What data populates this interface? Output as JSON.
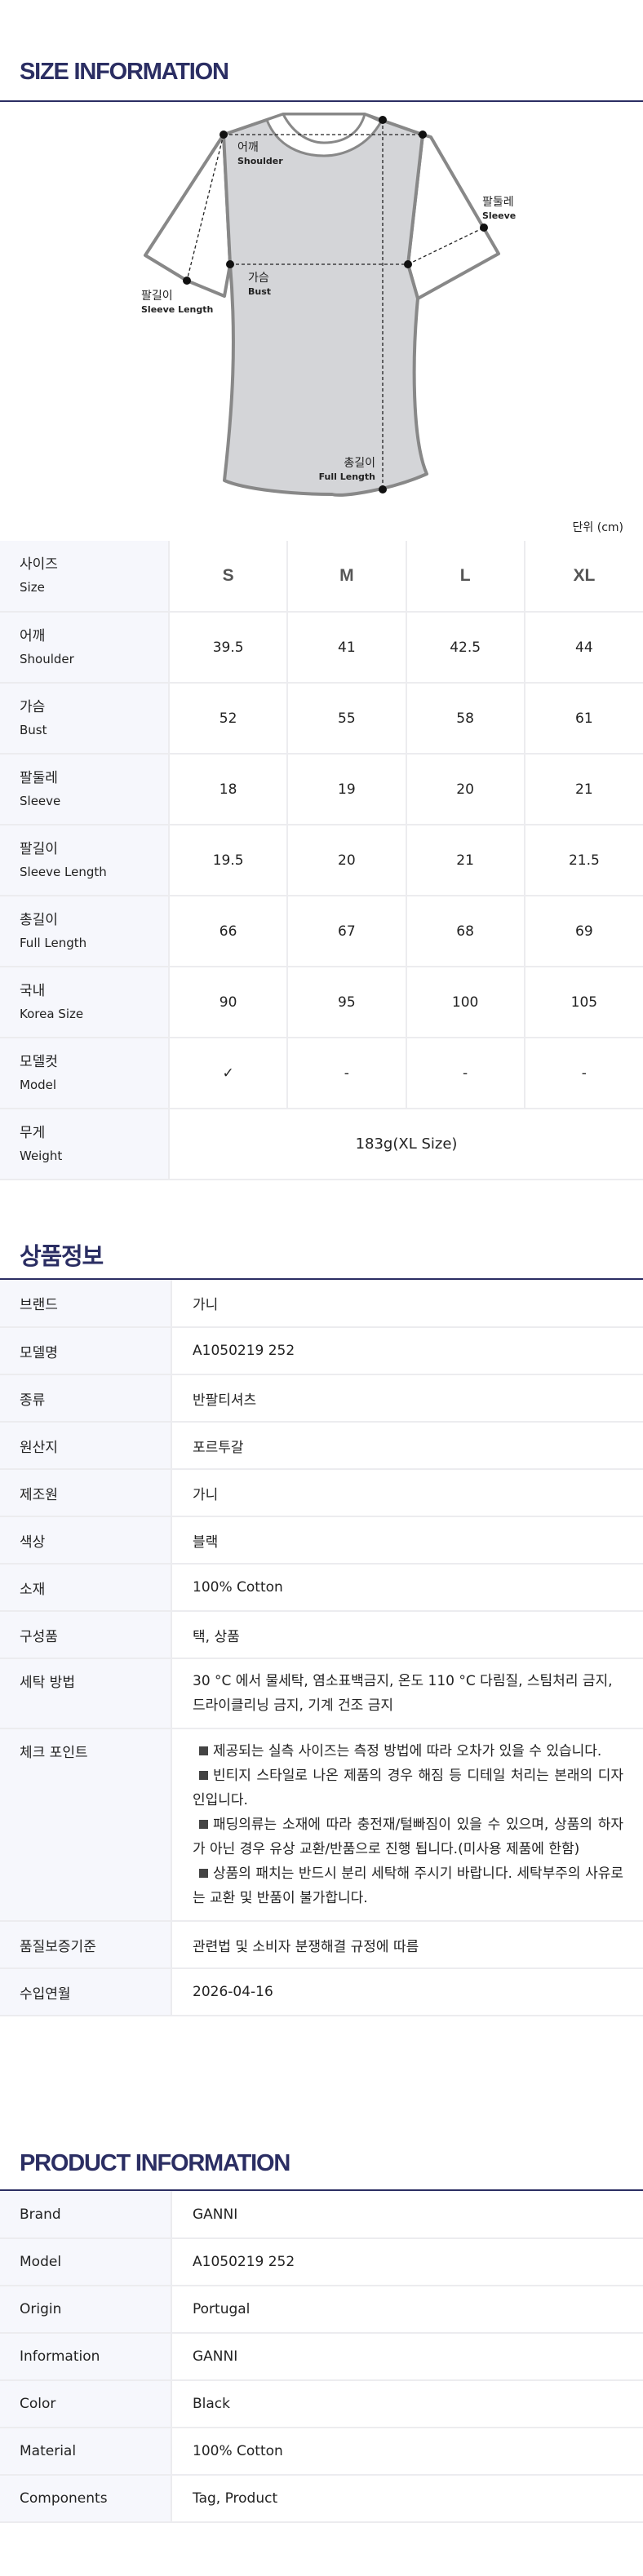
{
  "size_info": {
    "title": "SIZE INFORMATION",
    "unit": "단위 (cm)",
    "diagram_labels": {
      "shoulder_ko": "어깨",
      "shoulder_en": "Shoulder",
      "sleeve_ko": "팔둘레",
      "sleeve_en": "Sleeve",
      "bust_ko": "가슴",
      "bust_en": "Bust",
      "sleeve_length_ko": "팔길이",
      "sleeve_length_en": "Sleeve Length",
      "full_length_ko": "총길이",
      "full_length_en": "Full Length"
    },
    "header": {
      "ko": "사이즈",
      "en": "Size",
      "sizes": [
        "S",
        "M",
        "L",
        "XL"
      ]
    },
    "rows": [
      {
        "ko": "어깨",
        "en": "Shoulder",
        "values": [
          "39.5",
          "41",
          "42.5",
          "44"
        ]
      },
      {
        "ko": "가슴",
        "en": "Bust",
        "values": [
          "52",
          "55",
          "58",
          "61"
        ]
      },
      {
        "ko": "팔둘레",
        "en": "Sleeve",
        "values": [
          "18",
          "19",
          "20",
          "21"
        ]
      },
      {
        "ko": "팔길이",
        "en": "Sleeve Length",
        "values": [
          "19.5",
          "20",
          "21",
          "21.5"
        ]
      },
      {
        "ko": "총길이",
        "en": "Full Length",
        "values": [
          "66",
          "67",
          "68",
          "69"
        ]
      },
      {
        "ko": "국내",
        "en": "Korea Size",
        "values": [
          "90",
          "95",
          "100",
          "105"
        ]
      },
      {
        "ko": "모델컷",
        "en": "Model",
        "values": [
          "✓",
          "-",
          "-",
          "-"
        ]
      }
    ],
    "weight": {
      "ko": "무게",
      "en": "Weight",
      "value": "183g(XL Size)"
    }
  },
  "product_ko": {
    "title": "상품정보",
    "rows": [
      {
        "label": "브랜드",
        "value": "가니"
      },
      {
        "label": "모델명",
        "value": "A1050219 252"
      },
      {
        "label": "종류",
        "value": "반팔티셔츠"
      },
      {
        "label": "원산지",
        "value": "포르투갈"
      },
      {
        "label": "제조원",
        "value": "가니"
      },
      {
        "label": "색상",
        "value": "블랙"
      },
      {
        "label": "소재",
        "value": "100% Cotton"
      },
      {
        "label": "구성품",
        "value": "택, 상품"
      },
      {
        "label": "세탁 방법",
        "value": "30 °C 에서 물세탁, 염소표백금지, 온도 110 °C 다림질, 스팀처리 금지, 드라이클리닝 금지, 기계 건조 금지"
      }
    ],
    "check_point": {
      "label": "체크 포인트",
      "items": [
        "제공되는 실측 사이즈는 측정 방법에 따라 오차가 있을 수 있습니다.",
        "빈티지 스타일로 나온 제품의 경우 해짐 등 디테일 처리는 본래의 디자인입니다.",
        "패딩의류는 소재에 따라 충전재/털빠짐이 있을 수 있으며, 상품의 하자가 아닌 경우 유상 교환/반품으로 진행 됩니다.(미사용 제품에 한함)",
        "상품의 패치는 반드시 분리 세탁해 주시기 바랍니다. 세탁부주의 사유로는 교환 및 반품이 불가합니다."
      ]
    },
    "rows_after": [
      {
        "label": "품질보증기준",
        "value": "관련법 및 소비자 분쟁해결 규정에 따름"
      },
      {
        "label": "수입연월",
        "value": "2026-04-16"
      }
    ]
  },
  "product_en": {
    "title": "PRODUCT INFORMATION",
    "rows": [
      {
        "label": "Brand",
        "value": "GANNI"
      },
      {
        "label": "Model",
        "value": "A1050219 252"
      },
      {
        "label": "Origin",
        "value": "Portugal"
      },
      {
        "label": "Information",
        "value": "GANNI"
      },
      {
        "label": "Color",
        "value": "Black"
      },
      {
        "label": "Material",
        "value": "100% Cotton"
      },
      {
        "label": "Components",
        "value": "Tag, Product"
      }
    ]
  },
  "colors": {
    "accent": "#2b2e63",
    "label_bg": "#f6f7fc",
    "border": "#ececef",
    "shirt_fill": "#d4d5d8",
    "shirt_outline": "#888888"
  }
}
